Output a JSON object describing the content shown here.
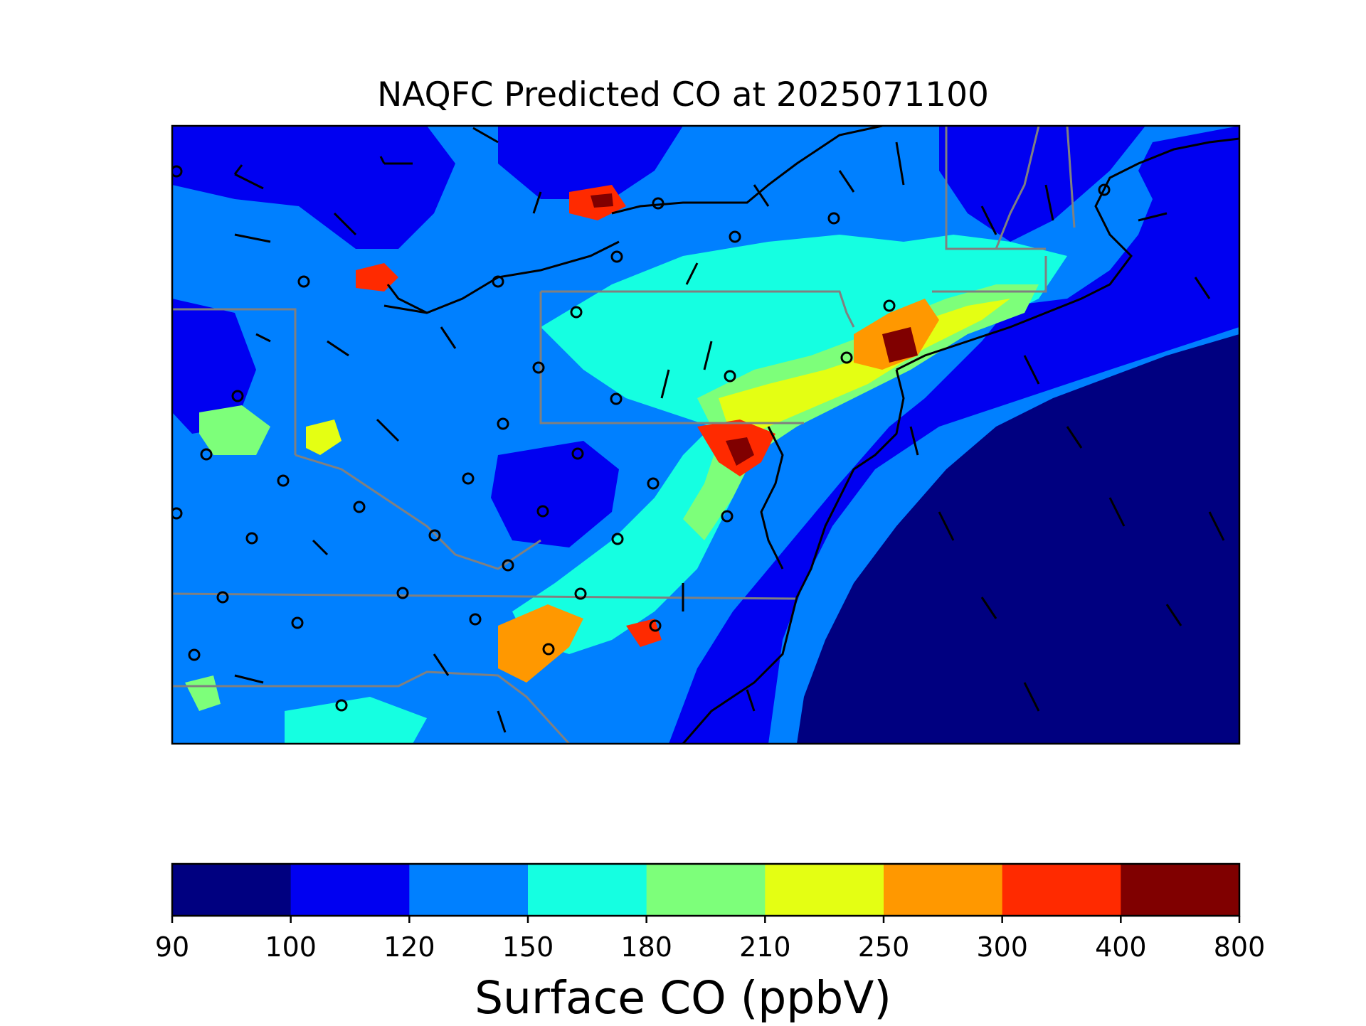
{
  "title": "NAQFC Predicted CO at 2025071100",
  "colorbar": {
    "label": "Surface CO (ppbV)",
    "boundaries": [
      "90",
      "100",
      "120",
      "150",
      "180",
      "210",
      "250",
      "300",
      "400",
      "800"
    ],
    "colors": [
      "#000080",
      "#0000f1",
      "#0080ff",
      "#15ffe1",
      "#7dff7a",
      "#e4ff13",
      "#ff9800",
      "#ff2a00",
      "#800000"
    ]
  },
  "map": {
    "background_color": "#0080ff",
    "boundary_color": "#808080",
    "coastline_color": "#000000",
    "symbols": [
      "wind-barb",
      "calm-wind-circle"
    ]
  }
}
